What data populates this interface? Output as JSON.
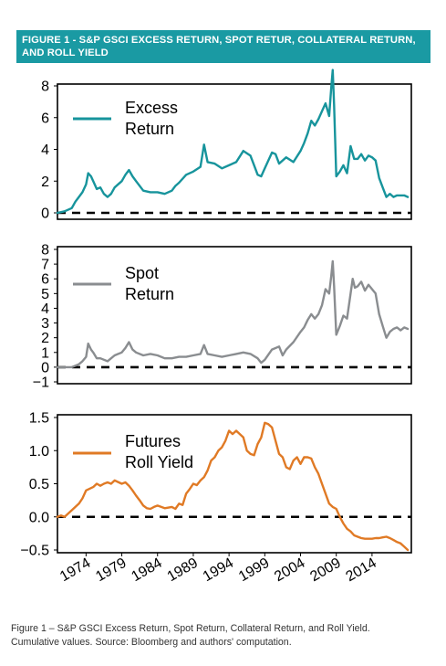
{
  "figure": {
    "banner_title": "FIGURE 1 - S&P GSCI EXCESS RETURN, SPOT RETUR, COLLATERAL RETURN, AND ROLL YIELD",
    "caption_line1": "Figure 1 – S&P GSCI Excess Return, Spot Return, Collateral Return, and Roll Yield.",
    "caption_line2": "Cumulative values. Source: Bloomberg and authors' computation."
  },
  "colors": {
    "banner": "#1a9aa3",
    "excess": "#17949c",
    "spot": "#8a8d90",
    "roll": "#e07a25"
  },
  "chart_data": [
    {
      "type": "line",
      "title": "",
      "xlabel": "",
      "ylabel": "",
      "xlim": [
        1970,
        2019.5
      ],
      "ylim": [
        -0.3,
        9
      ],
      "yticks": [
        "0",
        "2",
        "4",
        "6",
        "8"
      ],
      "ytick_values": [
        0,
        2,
        4,
        6,
        8
      ],
      "reference_line": 0,
      "legend": "top-left",
      "series": [
        {
          "name": "Excess\nReturn",
          "color": "#17949c",
          "x": [
            1970.0,
            1971.0,
            1972.0,
            1972.5,
            1973.0,
            1973.5,
            1974.0,
            1974.3,
            1974.7,
            1975.0,
            1975.5,
            1976.0,
            1976.5,
            1977.0,
            1977.5,
            1978.0,
            1978.5,
            1979.0,
            1979.5,
            1980.0,
            1980.5,
            1981.0,
            1982.0,
            1983.0,
            1984.0,
            1985.0,
            1986.0,
            1986.5,
            1987.0,
            1988.0,
            1989.0,
            1990.0,
            1990.5,
            1991.0,
            1992.0,
            1993.0,
            1994.0,
            1995.0,
            1996.0,
            1997.0,
            1997.5,
            1998.0,
            1998.5,
            1999.0,
            2000.0,
            2000.5,
            2001.0,
            2002.0,
            2003.0,
            2004.0,
            2004.5,
            2005.0,
            2005.5,
            2006.0,
            2006.5,
            2007.0,
            2007.5,
            2008.0,
            2008.3,
            2008.5,
            2008.7,
            2009.0,
            2009.5,
            2010.0,
            2010.5,
            2011.0,
            2011.5,
            2012.0,
            2012.5,
            2013.0,
            2013.5,
            2014.0,
            2014.5,
            2015.0,
            2015.5,
            2016.0,
            2016.5,
            2017.0,
            2017.5,
            2018.0,
            2018.5,
            2019.0
          ],
          "y": [
            0.0,
            0.1,
            0.3,
            0.7,
            1.0,
            1.3,
            1.8,
            2.5,
            2.3,
            2.0,
            1.5,
            1.6,
            1.2,
            1.0,
            1.2,
            1.6,
            1.8,
            2.0,
            2.4,
            2.7,
            2.3,
            2.0,
            1.4,
            1.3,
            1.3,
            1.2,
            1.4,
            1.7,
            1.9,
            2.4,
            2.6,
            2.9,
            4.3,
            3.2,
            3.1,
            2.8,
            3.0,
            3.2,
            3.9,
            3.6,
            3.0,
            2.4,
            2.3,
            2.8,
            3.8,
            3.7,
            3.1,
            3.5,
            3.2,
            3.9,
            4.4,
            5.0,
            5.8,
            5.5,
            5.9,
            6.4,
            6.9,
            6.1,
            7.9,
            9.0,
            6.8,
            2.3,
            2.6,
            3.0,
            2.5,
            4.2,
            3.4,
            3.4,
            3.7,
            3.3,
            3.6,
            3.5,
            3.3,
            2.2,
            1.6,
            1.0,
            1.2,
            1.0,
            1.1,
            1.1,
            1.1,
            1.0
          ]
        }
      ]
    },
    {
      "type": "line",
      "title": "",
      "xlabel": "",
      "ylabel": "",
      "xlim": [
        1970,
        2019.5
      ],
      "ylim": [
        -1.1,
        8
      ],
      "yticks": [
        "−1",
        "0",
        "1",
        "2",
        "3",
        "4",
        "5",
        "6",
        "7",
        "8"
      ],
      "ytick_values": [
        -1,
        0,
        1,
        2,
        3,
        4,
        5,
        6,
        7,
        8
      ],
      "reference_line": 0,
      "legend": "top-left",
      "series": [
        {
          "name": "Spot\nReturn",
          "color": "#8a8d90",
          "x": [
            1970.0,
            1971.0,
            1972.0,
            1972.5,
            1973.0,
            1973.5,
            1974.0,
            1974.3,
            1974.7,
            1975.0,
            1975.5,
            1976.0,
            1977.0,
            1977.5,
            1978.0,
            1979.0,
            1979.5,
            1980.0,
            1980.5,
            1981.0,
            1982.0,
            1983.0,
            1984.0,
            1985.0,
            1986.0,
            1987.0,
            1988.0,
            1989.0,
            1990.0,
            1990.5,
            1991.0,
            1992.0,
            1993.0,
            1994.0,
            1995.0,
            1996.0,
            1997.0,
            1998.0,
            1998.5,
            1999.0,
            2000.0,
            2001.0,
            2001.5,
            2002.0,
            2003.0,
            2004.0,
            2004.5,
            2005.0,
            2005.5,
            2006.0,
            2006.5,
            2007.0,
            2007.5,
            2008.0,
            2008.3,
            2008.5,
            2008.7,
            2009.0,
            2009.5,
            2010.0,
            2010.5,
            2011.0,
            2011.3,
            2011.6,
            2012.0,
            2012.5,
            2013.0,
            2013.5,
            2014.0,
            2014.5,
            2015.0,
            2015.5,
            2016.0,
            2016.5,
            2017.0,
            2017.5,
            2018.0,
            2018.5,
            2019.0
          ],
          "y": [
            0.0,
            0.0,
            0.0,
            0.1,
            0.2,
            0.4,
            0.7,
            1.6,
            1.2,
            1.0,
            0.6,
            0.6,
            0.4,
            0.6,
            0.8,
            1.0,
            1.3,
            1.7,
            1.2,
            1.0,
            0.8,
            0.9,
            0.8,
            0.6,
            0.6,
            0.7,
            0.7,
            0.8,
            0.9,
            1.5,
            0.9,
            0.8,
            0.7,
            0.8,
            0.9,
            1.0,
            0.9,
            0.6,
            0.3,
            0.5,
            1.2,
            1.4,
            0.8,
            1.2,
            1.7,
            2.4,
            2.7,
            3.2,
            3.6,
            3.3,
            3.6,
            4.2,
            5.3,
            5.0,
            6.2,
            7.2,
            5.5,
            2.2,
            2.8,
            3.5,
            3.3,
            5.0,
            6.0,
            5.4,
            5.5,
            5.8,
            5.2,
            5.6,
            5.3,
            5.0,
            3.6,
            2.8,
            2.0,
            2.4,
            2.6,
            2.7,
            2.5,
            2.7,
            2.6
          ]
        }
      ]
    },
    {
      "type": "line",
      "title": "",
      "xlabel": "",
      "ylabel": "",
      "xlim": [
        1970,
        2019.5
      ],
      "ylim": [
        -0.5,
        1.5
      ],
      "yticks": [
        "−0.5",
        "0.0",
        "0.5",
        "1.0",
        "1.5"
      ],
      "ytick_values": [
        -0.5,
        0.0,
        0.5,
        1.0,
        1.5
      ],
      "xticks": [
        "1974",
        "1979",
        "1984",
        "1989",
        "1994",
        "1999",
        "2004",
        "2009",
        "2014"
      ],
      "xtick_values": [
        1974,
        1979,
        1984,
        1989,
        1994,
        1999,
        2004,
        2009,
        2014
      ],
      "reference_line": 0,
      "legend": "top-left",
      "series": [
        {
          "name": "Futures\nRoll Yield",
          "color": "#e07a25",
          "x": [
            1970.0,
            1970.5,
            1971.0,
            1972.0,
            1972.5,
            1973.0,
            1973.5,
            1974.0,
            1975.0,
            1975.5,
            1976.0,
            1976.5,
            1977.0,
            1977.5,
            1978.0,
            1979.0,
            1979.5,
            1980.0,
            1980.5,
            1981.0,
            1981.5,
            1982.0,
            1982.5,
            1983.0,
            1983.5,
            1984.0,
            1985.0,
            1986.0,
            1986.5,
            1987.0,
            1987.5,
            1988.0,
            1988.5,
            1989.0,
            1989.5,
            1990.0,
            1990.5,
            1991.0,
            1991.5,
            1992.0,
            1992.5,
            1993.0,
            1993.5,
            1994.0,
            1994.5,
            1995.0,
            1995.5,
            1996.0,
            1996.5,
            1997.0,
            1997.5,
            1998.0,
            1998.5,
            1999.0,
            1999.5,
            2000.0,
            2000.5,
            2001.0,
            2001.5,
            2002.0,
            2002.5,
            2003.0,
            2003.5,
            2004.0,
            2004.5,
            2005.0,
            2005.5,
            2006.0,
            2006.5,
            2007.0,
            2008.0,
            2008.5,
            2009.0,
            2009.5,
            2010.0,
            2010.5,
            2011.0,
            2011.5,
            2012.0,
            2012.5,
            2013.0,
            2014.0,
            2014.5,
            2015.0,
            2015.5,
            2016.0,
            2016.5,
            2017.0,
            2017.5,
            2018.0,
            2018.5,
            2019.0
          ],
          "y": [
            0.0,
            0.02,
            0.0,
            0.1,
            0.15,
            0.2,
            0.28,
            0.4,
            0.45,
            0.5,
            0.47,
            0.5,
            0.52,
            0.5,
            0.55,
            0.5,
            0.52,
            0.47,
            0.4,
            0.32,
            0.25,
            0.17,
            0.13,
            0.12,
            0.15,
            0.17,
            0.13,
            0.15,
            0.12,
            0.2,
            0.18,
            0.35,
            0.42,
            0.5,
            0.48,
            0.55,
            0.6,
            0.7,
            0.85,
            0.9,
            1.0,
            1.05,
            1.15,
            1.3,
            1.25,
            1.3,
            1.25,
            1.2,
            1.0,
            0.95,
            0.93,
            1.1,
            1.2,
            1.42,
            1.4,
            1.35,
            1.15,
            0.95,
            0.9,
            0.75,
            0.72,
            0.85,
            0.9,
            0.8,
            0.9,
            0.9,
            0.88,
            0.75,
            0.65,
            0.5,
            0.2,
            0.15,
            0.12,
            0.0,
            -0.1,
            -0.18,
            -0.22,
            -0.28,
            -0.3,
            -0.32,
            -0.33,
            -0.33,
            -0.32,
            -0.32,
            -0.31,
            -0.3,
            -0.32,
            -0.35,
            -0.38,
            -0.4,
            -0.45,
            -0.5
          ]
        }
      ]
    }
  ]
}
